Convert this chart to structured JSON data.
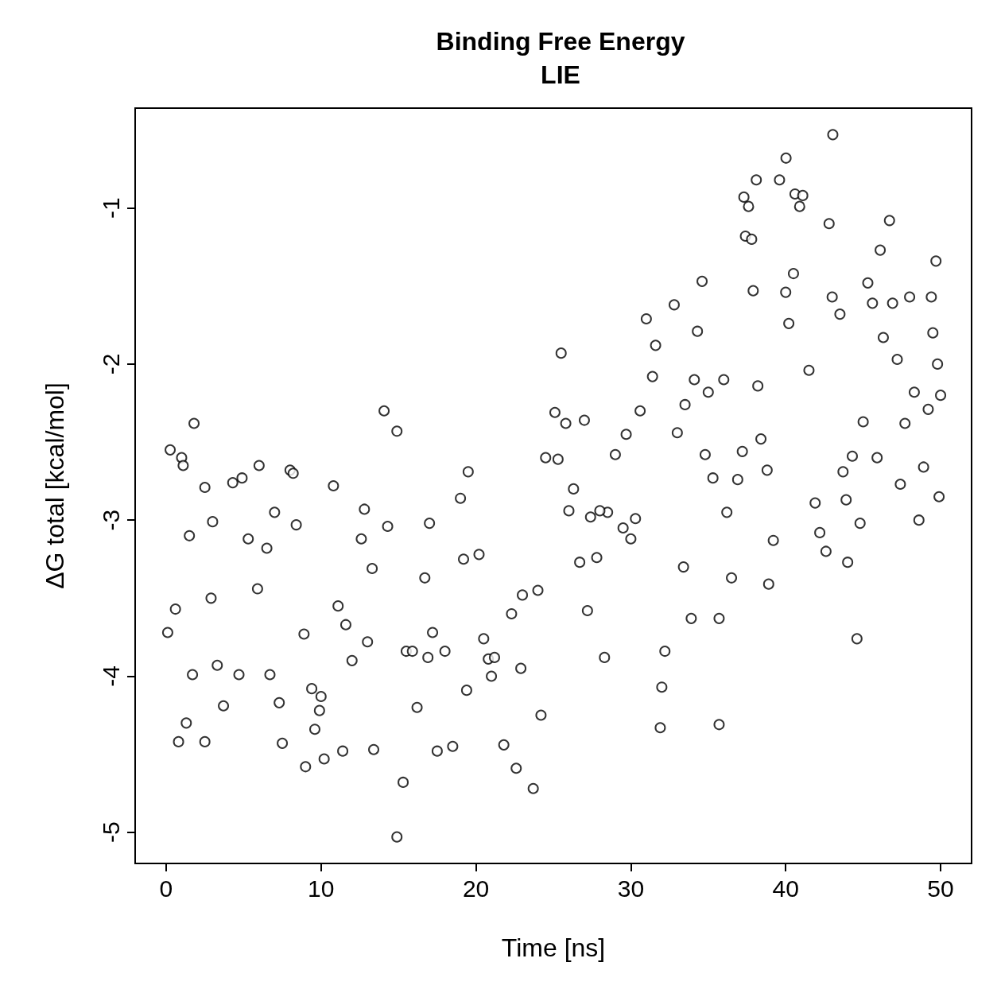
{
  "chart_data": {
    "type": "scatter",
    "title": "Binding Free Energy\nLIE",
    "xlabel": "Time [ns]",
    "ylabel": "ΔG total [kcal/mol]",
    "xlim": [
      -2,
      52
    ],
    "ylim": [
      -5.2,
      -0.36
    ],
    "xticks": [
      0,
      10,
      20,
      30,
      40,
      50
    ],
    "yticks": [
      -5,
      -4,
      -3,
      -2,
      -1
    ],
    "marker": "circle",
    "series": [
      {
        "color": "#000000",
        "x": [
          0.26,
          0.1,
          0.6,
          1.0,
          1.1,
          1.5,
          0.8,
          1.3,
          1.8,
          1.7,
          2.5,
          2.5,
          3.0,
          3.7,
          4.3,
          4.9,
          5.3,
          6.0,
          6.5,
          7.0,
          7.5,
          8.0,
          8.2,
          8.4,
          9.0,
          9.4,
          9.6,
          10.0,
          10.2,
          10.8,
          11.4,
          11.1,
          12.6,
          12.8,
          13.4,
          13.3,
          14.07,
          14.3,
          14.9,
          15.3,
          14.9,
          15.5,
          16.2,
          16.7,
          17.0,
          17.5,
          18.5,
          19.2,
          19.5,
          19.0,
          20.2,
          20.5,
          21.0,
          21.8,
          22.6,
          23.0,
          23.7,
          24.2,
          24.5,
          25.1,
          25.5,
          25.3,
          25.8,
          26.3,
          26.7,
          27.0,
          27.4,
          27.8,
          28.3,
          28.5,
          29.0,
          29.5,
          29.7,
          30.0,
          30.6,
          31.0,
          31.4,
          31.6,
          31.9,
          32.0,
          32.2,
          32.8,
          33.0,
          33.4,
          33.5,
          33.9,
          34.1,
          34.3,
          34.6,
          35.0,
          35.3,
          35.7,
          35.7,
          36.0,
          36.2,
          36.9,
          37.2,
          37.3,
          37.4,
          37.6,
          37.8,
          37.9,
          38.1,
          38.2,
          38.4,
          38.8,
          39.2,
          39.6,
          40.02,
          40.0,
          40.2,
          40.5,
          40.6,
          40.9,
          41.1,
          41.5,
          41.9,
          42.2,
          42.6,
          42.8,
          43.0,
          43.04,
          43.5,
          43.7,
          43.9,
          44.0,
          44.3,
          44.6,
          44.8,
          45.0,
          45.3,
          45.6,
          45.9,
          46.1,
          46.3,
          46.7,
          46.9,
          47.2,
          47.4,
          47.7,
          48.0,
          48.3,
          48.6,
          48.9,
          49.2,
          49.4,
          49.5,
          49.7,
          49.8,
          50.0,
          49.9,
          3.3,
          4.7,
          5.9,
          6.7,
          7.3,
          8.9,
          9.9,
          12.0,
          13.0,
          15.9,
          17.2,
          18.0,
          19.4,
          20.8,
          22.3,
          22.9,
          24.0,
          26.0,
          28.0,
          30.3,
          34.8,
          36.5,
          38.9,
          2.9,
          11.6,
          16.9,
          21.2,
          27.2
        ],
        "values": [
          -2.55,
          -3.72,
          -3.57,
          -2.6,
          -2.65,
          -3.1,
          -4.42,
          -4.3,
          -2.38,
          -3.99,
          -2.79,
          -4.42,
          -3.01,
          -4.19,
          -2.76,
          -2.73,
          -3.12,
          -2.65,
          -3.18,
          -2.95,
          -4.43,
          -2.68,
          -2.7,
          -3.03,
          -4.58,
          -4.08,
          -4.34,
          -4.13,
          -4.53,
          -2.78,
          -4.48,
          -3.55,
          -3.12,
          -2.93,
          -4.47,
          -3.31,
          -2.3,
          -3.04,
          -2.43,
          -4.68,
          -5.03,
          -3.84,
          -4.2,
          -3.37,
          -3.02,
          -4.48,
          -4.45,
          -3.25,
          -2.69,
          -2.86,
          -3.22,
          -3.76,
          -4.0,
          -4.44,
          -4.59,
          -3.48,
          -4.72,
          -4.25,
          -2.6,
          -2.31,
          -1.93,
          -2.61,
          -2.38,
          -2.8,
          -3.27,
          -2.36,
          -2.98,
          -3.24,
          -3.88,
          -2.95,
          -2.58,
          -3.05,
          -2.45,
          -3.12,
          -2.3,
          -1.71,
          -2.08,
          -1.88,
          -4.33,
          -4.07,
          -3.84,
          -1.62,
          -2.44,
          -3.3,
          -2.26,
          -3.63,
          -2.1,
          -1.79,
          -1.47,
          -2.18,
          -2.73,
          -4.31,
          -3.63,
          -2.1,
          -2.95,
          -2.74,
          -2.56,
          -0.93,
          -1.18,
          -0.99,
          -1.2,
          -1.53,
          -0.82,
          -2.14,
          -2.48,
          -2.68,
          -3.13,
          -0.82,
          -0.68,
          -1.54,
          -1.74,
          -1.42,
          -0.91,
          -0.99,
          -0.92,
          -2.04,
          -2.89,
          -3.08,
          -3.2,
          -1.1,
          -1.57,
          -0.53,
          -1.68,
          -2.69,
          -2.87,
          -3.27,
          -2.59,
          -3.76,
          -3.02,
          -2.37,
          -1.48,
          -1.61,
          -2.6,
          -1.27,
          -1.83,
          -1.08,
          -1.61,
          -1.97,
          -2.77,
          -2.38,
          -1.57,
          -2.18,
          -3.0,
          -2.66,
          -2.29,
          -1.57,
          -1.8,
          -1.34,
          -2.0,
          -2.2,
          -2.85,
          -3.93,
          -3.99,
          -3.44,
          -3.99,
          -4.17,
          -3.73,
          -4.22,
          -3.9,
          -3.78,
          -3.84,
          -3.72,
          -3.84,
          -4.09,
          -3.89,
          -3.6,
          -3.95,
          -3.45,
          -2.94,
          -2.94,
          -2.99,
          -2.58,
          -3.37,
          -3.41,
          -3.5,
          -3.67,
          -3.88,
          -3.88,
          -3.58
        ]
      }
    ]
  }
}
